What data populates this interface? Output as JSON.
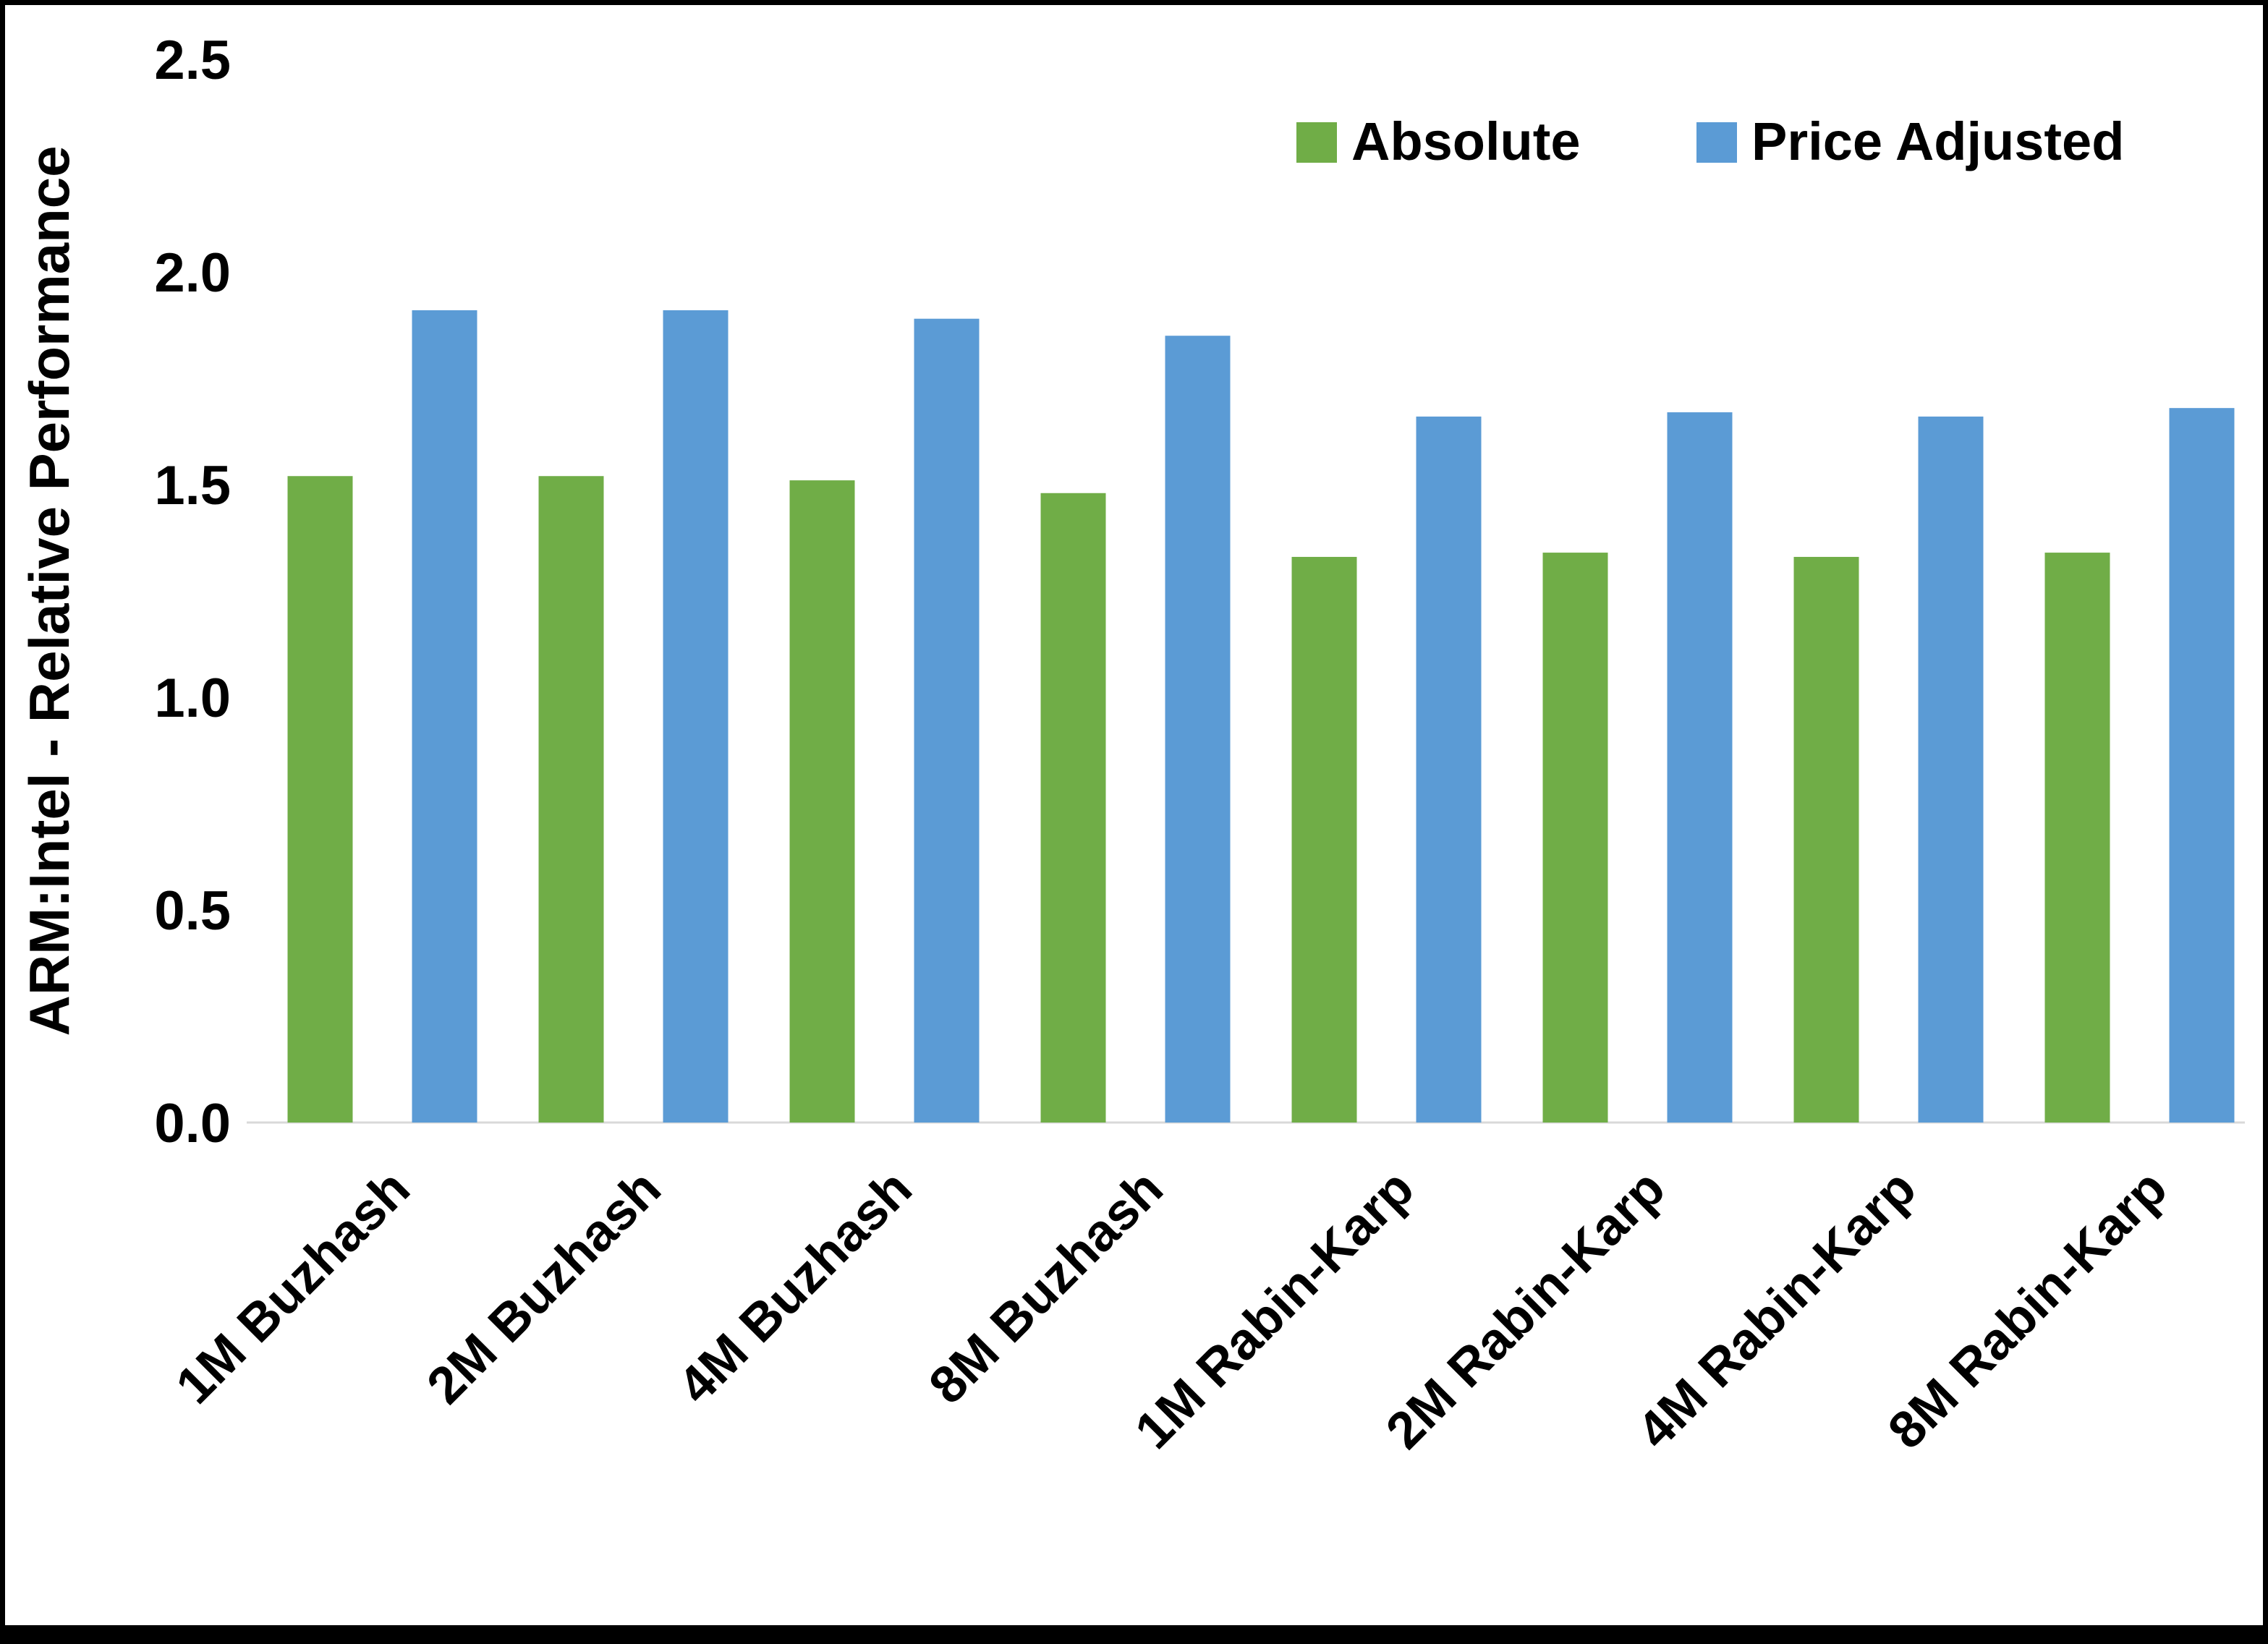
{
  "chart_data": {
    "type": "bar",
    "title": "",
    "xlabel": "",
    "ylabel": "ARM:Intel - Relative Performance",
    "ylim": [
      0,
      2.5
    ],
    "yticks": [
      0.0,
      0.5,
      1.0,
      1.5,
      2.0,
      2.5
    ],
    "ytick_format_decimals": 1,
    "grid": false,
    "legend_position": "top-right-inside",
    "axis_line_color": "#d9d9d9",
    "background_color": "#ffffff",
    "categories": [
      "1M Buzhash",
      "2M Buzhash",
      "4M Buzhash",
      "8M Buzhash",
      "1M Rabin-Karp",
      "2M Rabin-Karp",
      "4M Rabin-Karp",
      "8M Rabin-Karp"
    ],
    "series": [
      {
        "name": "Absolute",
        "color": "#70AD47",
        "values": [
          1.52,
          1.52,
          1.51,
          1.48,
          1.33,
          1.34,
          1.33,
          1.34
        ]
      },
      {
        "name": "Price Adjusted",
        "color": "#5B9BD5",
        "values": [
          1.91,
          1.91,
          1.89,
          1.85,
          1.66,
          1.67,
          1.66,
          1.68
        ]
      }
    ]
  }
}
